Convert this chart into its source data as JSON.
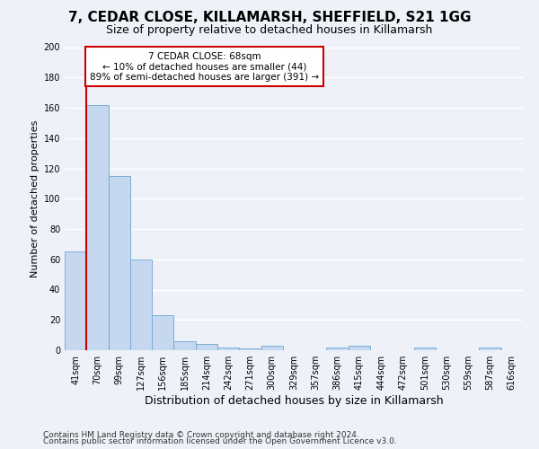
{
  "title1": "7, CEDAR CLOSE, KILLAMARSH, SHEFFIELD, S21 1GG",
  "title2": "Size of property relative to detached houses in Killamarsh",
  "xlabel": "Distribution of detached houses by size in Killamarsh",
  "ylabel": "Number of detached properties",
  "categories": [
    "41sqm",
    "70sqm",
    "99sqm",
    "127sqm",
    "156sqm",
    "185sqm",
    "214sqm",
    "242sqm",
    "271sqm",
    "300sqm",
    "329sqm",
    "357sqm",
    "386sqm",
    "415sqm",
    "444sqm",
    "472sqm",
    "501sqm",
    "530sqm",
    "559sqm",
    "587sqm",
    "616sqm"
  ],
  "values": [
    65,
    162,
    115,
    60,
    23,
    6,
    4,
    2,
    1,
    3,
    0,
    0,
    2,
    3,
    0,
    0,
    2,
    0,
    0,
    2,
    0
  ],
  "bar_color": "#c5d8f0",
  "bar_edge_color": "#7aadd4",
  "highlight_bar_index": 1,
  "highlight_color": "#cc0000",
  "annotation_text": "7 CEDAR CLOSE: 68sqm\n← 10% of detached houses are smaller (44)\n89% of semi-detached houses are larger (391) →",
  "annotation_box_color": "#ffffff",
  "annotation_box_edge": "#cc0000",
  "ylim": [
    0,
    200
  ],
  "yticks": [
    0,
    20,
    40,
    60,
    80,
    100,
    120,
    140,
    160,
    180,
    200
  ],
  "footnote1": "Contains HM Land Registry data © Crown copyright and database right 2024.",
  "footnote2": "Contains public sector information licensed under the Open Government Licence v3.0.",
  "bg_color": "#eef2f8",
  "grid_color": "#ffffff",
  "title1_fontsize": 11,
  "title2_fontsize": 9,
  "xlabel_fontsize": 9,
  "ylabel_fontsize": 8,
  "tick_fontsize": 7,
  "footnote_fontsize": 6.5
}
